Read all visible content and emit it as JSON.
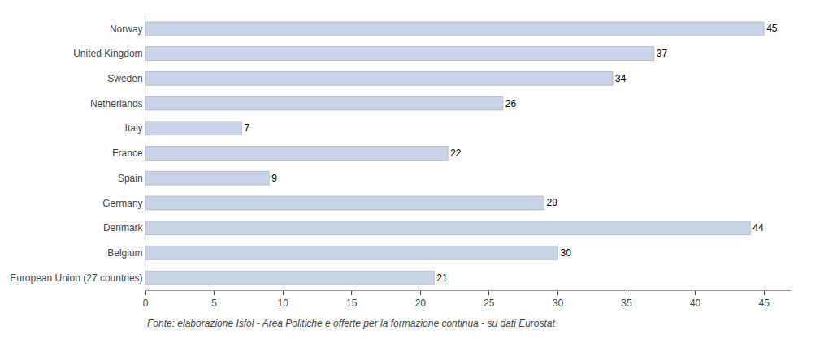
{
  "chart_data": {
    "type": "bar",
    "orientation": "horizontal",
    "categories": [
      "Norway",
      "United Kingdom",
      "Sweden",
      "Netherlands",
      "Italy",
      "France",
      "Spain",
      "Germany",
      "Denmark",
      "Belgium",
      "European Union (27 countries)"
    ],
    "values": [
      45,
      37,
      34,
      26,
      7,
      22,
      9,
      29,
      44,
      30,
      21
    ],
    "color": "#c8d4e8",
    "xlim": [
      0,
      47
    ],
    "xticks": [
      0,
      5,
      10,
      15,
      20,
      25,
      30,
      35,
      40,
      45
    ],
    "data_labels": true,
    "grid": false,
    "footnote": "Fonte: elaborazione Isfol - Area Politiche e offerte per la formazione continua - su dati Eurostat"
  }
}
